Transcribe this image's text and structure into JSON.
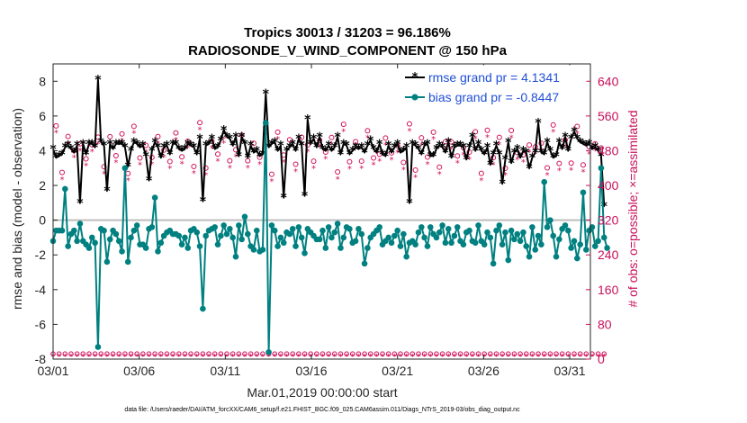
{
  "chart_data": {
    "type": "line",
    "title_line1": "Tropics 30013 / 31203 = 96.186%",
    "title_line2": "RADIOSONDE_V_WIND_COMPONENT @ 150 hPa",
    "ylabel_left": "rmse and bias (model - observation)",
    "ylabel_right": "# of obs: o=possible; ×=assimilated",
    "xlabel": "Mar.01,2019 00:00:00 start",
    "footnote": "data file: /Users/raeder/DAI/ATM_forcXX/CAM6_setup/f.e21.FHIST_BGC.f09_025.CAM6assim.011/Diags_NTrS_2019-03/obs_diag_output.nc",
    "x_ticks": [
      "03/01",
      "03/06",
      "03/11",
      "03/16",
      "03/21",
      "03/26",
      "03/31"
    ],
    "y_left_ticks": [
      "-8",
      "-6",
      "-4",
      "-2",
      "0",
      "2",
      "4",
      "6",
      "8"
    ],
    "y_right_ticks": [
      "0",
      "80",
      "160",
      "240",
      "320",
      "400",
      "480",
      "560",
      "640"
    ],
    "xlim_days": [
      1,
      32.2
    ],
    "ylim_left": [
      -8,
      9
    ],
    "ylim_right": [
      0,
      680
    ],
    "colors": {
      "rmse": "#000000",
      "bias": "#008080",
      "obs": "#d0105a",
      "zero": "#bdbdbd"
    },
    "series": [
      {
        "name": "rmse grand pr = 4.1341",
        "values": [
          4.1,
          3.6,
          3.7,
          3.8,
          4.2,
          4.3,
          4.1,
          3.9,
          4.3,
          1.0,
          4.4,
          3.8,
          4.4,
          4.4,
          4.2,
          8.1,
          4.5,
          4.3,
          1.7,
          4.4,
          4.1,
          4.4,
          4.4,
          4.4,
          4.2,
          3.1,
          4.0,
          4.5,
          4.4,
          4.2,
          4.3,
          3.7,
          2.3,
          4.0,
          4.5,
          4.2,
          3.6,
          4.2,
          4.3,
          3.8,
          4.4,
          4.4,
          4.1,
          4.0,
          4.1,
          4.4,
          4.3,
          4.2,
          3.8,
          4.7,
          1.1,
          4.3,
          4.4,
          4.7,
          4.1,
          4.2,
          4.6,
          5.2,
          4.8,
          4.7,
          4.3,
          4.8,
          3.7,
          4.8,
          4.4,
          3.6,
          4.3,
          3.9,
          4.0,
          3.7,
          3.8,
          7.3,
          4.2,
          4.4,
          4.5,
          4.0,
          4.3,
          1.3,
          4.0,
          4.2,
          4.4,
          4.0,
          4.7,
          4.3,
          1.4,
          5.8,
          4.4,
          4.7,
          4.2,
          4.8,
          4.1,
          4.0,
          4.3,
          4.0,
          4.2,
          4.8,
          3.8,
          4.4,
          4.3,
          3.8,
          4.0,
          4.2,
          4.1,
          4.2,
          3.9,
          4.3,
          4.6,
          4.1,
          3.9,
          4.4,
          3.8,
          3.7,
          4.3,
          3.9,
          4.2,
          4.4,
          3.9,
          4.0,
          4.2,
          1.0,
          4.4,
          4.3,
          4.1,
          3.8,
          4.3,
          4.4,
          3.7,
          3.7,
          4.1,
          4.3,
          4.2,
          3.9,
          4.5,
          3.6,
          4.2,
          4.3,
          4.3,
          4.2,
          3.5,
          4.2,
          4.8,
          4.0,
          4.4,
          4.0,
          3.8,
          4.2,
          3.2,
          3.8,
          4.3,
          3.8,
          2.1,
          3.5,
          4.5,
          3.3,
          3.9,
          4.1,
          3.6,
          4.0,
          3.9,
          3.0,
          3.6,
          3.9,
          5.6,
          3.9,
          3.8,
          4.5,
          4.0,
          3.6,
          3.7,
          4.5,
          4.1,
          4.8,
          4.0,
          4.7,
          5.1,
          4.7,
          4.5,
          4.4,
          4.3,
          4.4,
          4.1,
          4.2,
          4.0,
          3.7,
          0.8
        ],
        "bias_name": "",
        "x_start": 1.0,
        "x_step": 0.1739
      },
      {
        "name": "bias grand pr = -0.8447",
        "values": [
          -1.2,
          -0.6,
          -0.6,
          -0.6,
          1.8,
          -1.5,
          -0.8,
          -0.6,
          -1.2,
          -0.2,
          -1.2,
          -1.4,
          -1.6,
          -1.0,
          -1.3,
          -7.3,
          -0.5,
          -0.6,
          -2.4,
          -1.1,
          -0.6,
          -0.8,
          -1.2,
          -1.8,
          3.0,
          -2.4,
          -1.0,
          -0.6,
          -0.3,
          -1.4,
          -1.4,
          -1.6,
          -0.5,
          -0.4,
          1.3,
          -1.8,
          -1.3,
          -0.9,
          -0.7,
          -0.6,
          -0.8,
          -0.8,
          -0.9,
          -1.4,
          -1.0,
          -1.6,
          -0.6,
          -0.5,
          -0.7,
          -1.5,
          -5.1,
          -0.9,
          -0.6,
          -0.5,
          -0.4,
          -1.4,
          -0.9,
          -0.3,
          -0.8,
          -0.5,
          -1.0,
          -2.1,
          -0.3,
          -1.1,
          0.2,
          -0.8,
          -1.5,
          -1.7,
          -0.6,
          -1.8,
          -1.7,
          5.6,
          -7.6,
          -0.3,
          -0.6,
          -1.5,
          -1.0,
          -1.3,
          -0.7,
          -0.8,
          -0.5,
          -1.5,
          -0.4,
          -1.0,
          -1.9,
          -0.5,
          -0.7,
          -0.9,
          -1.1,
          -1.1,
          -0.6,
          -1.6,
          -0.4,
          -1.0,
          -0.7,
          -0.2,
          -1.6,
          -1.0,
          -0.4,
          -0.5,
          -1.3,
          -1.2,
          -0.5,
          -0.8,
          -2.5,
          -1.6,
          -1.0,
          -0.8,
          -0.6,
          -0.4,
          -1.4,
          -1.2,
          -1.0,
          -1.3,
          -0.9,
          -0.6,
          -1.5,
          -0.8,
          -2.1,
          -1.3,
          -1.2,
          -1.4,
          -0.7,
          -0.4,
          -1.0,
          -1.5,
          -0.4,
          -0.8,
          -1.0,
          -0.7,
          -0.3,
          -1.3,
          -0.5,
          -1.3,
          -0.9,
          -0.4,
          -1.2,
          -1.4,
          -0.7,
          -0.6,
          -1.2,
          -1.3,
          -0.3,
          -1.2,
          -1.4,
          -0.7,
          -1.0,
          -2.5,
          -0.6,
          -0.3,
          -1.4,
          -0.7,
          -2.3,
          -0.6,
          -1.1,
          -0.8,
          -1.2,
          -0.7,
          -1.5,
          -2.1,
          -0.4,
          -1.7,
          -0.9,
          -1.4,
          2.2,
          -0.4,
          0.0,
          -0.9,
          -2.1,
          -1.1,
          -0.5,
          -0.3,
          -0.6,
          -1.6,
          -1.2,
          -2.2,
          -1.4,
          1.6,
          -1.7,
          -0.6,
          -0.4,
          -1.5,
          -1.2,
          3.0,
          -1.0,
          -1.6
        ],
        "x_start": 1.0,
        "x_step": 0.1739
      }
    ],
    "obs_possible_note": "counts on right axis",
    "legend_position": "top-right"
  }
}
